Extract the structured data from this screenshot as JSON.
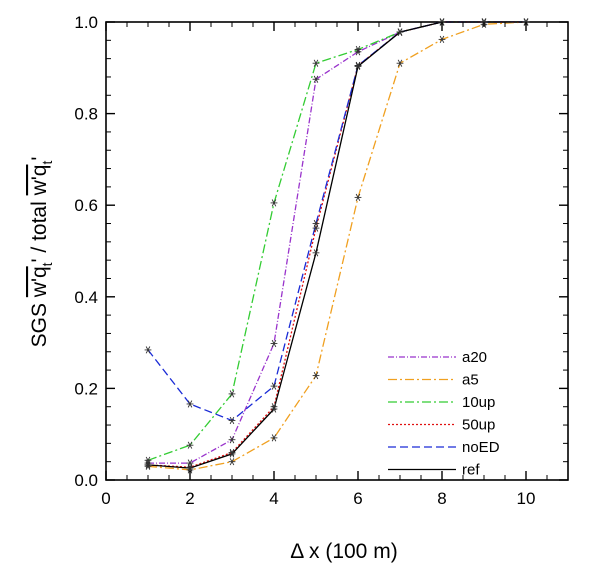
{
  "chart_data": {
    "type": "line",
    "title": "",
    "xlabel": "Δ x (100 m)",
    "ylabel": {
      "prefix": "SGS ",
      "numerator": "w'q",
      "subscript": "t",
      "prime": "'",
      "middle": " / total ",
      "denominator": "w'q"
    },
    "xlim": [
      0,
      11
    ],
    "ylim": [
      0,
      1
    ],
    "x_ticks": [
      0,
      2,
      4,
      6,
      8,
      10
    ],
    "x_tick_labels": [
      "0",
      "2",
      "4",
      "6",
      "8",
      "10"
    ],
    "y_ticks": [
      0,
      0.2,
      0.4,
      0.6,
      0.8,
      1.0
    ],
    "y_tick_labels": [
      "0.0",
      "0.2",
      "0.4",
      "0.6",
      "0.8",
      "1.0"
    ],
    "grid": false,
    "reference_line": {
      "y": 1.0,
      "style": "dashed",
      "color": "#000000"
    },
    "legend_position": "bottom-right",
    "x": [
      1,
      2,
      3,
      4,
      5,
      6,
      7,
      8,
      9,
      10
    ],
    "series": [
      {
        "name": "a20",
        "color": "#9933cc",
        "dash": "6,2,1,2",
        "values": [
          0.037,
          0.037,
          0.088,
          0.298,
          0.875,
          0.935,
          0.978,
          1.0,
          1.0,
          1.0
        ]
      },
      {
        "name": "a5",
        "color": "#f0a020",
        "dash": "9,3,2,3",
        "values": [
          0.03,
          0.022,
          0.04,
          0.092,
          0.228,
          0.617,
          0.91,
          0.962,
          0.995,
          1.0
        ]
      },
      {
        "name": "10up",
        "color": "#33cc33",
        "dash": "9,3,2,3",
        "values": [
          0.043,
          0.076,
          0.188,
          0.605,
          0.91,
          0.94,
          0.978,
          1.0,
          1.0,
          1.0
        ]
      },
      {
        "name": "50up",
        "color": "#e01010",
        "dash": "2,2",
        "values": [
          0.033,
          0.028,
          0.06,
          0.16,
          0.55,
          0.905,
          0.978,
          1.0,
          1.0,
          1.0
        ]
      },
      {
        "name": "noED",
        "color": "#1a2bd6",
        "dash": "8,4",
        "values": [
          0.284,
          0.166,
          0.13,
          0.205,
          0.56,
          0.905,
          0.978,
          1.0,
          1.0,
          1.0
        ]
      },
      {
        "name": "ref",
        "color": "#000000",
        "dash": "",
        "values": [
          0.033,
          0.026,
          0.057,
          0.155,
          0.496,
          0.903,
          0.978,
          1.0,
          1.0,
          1.0
        ]
      }
    ]
  }
}
